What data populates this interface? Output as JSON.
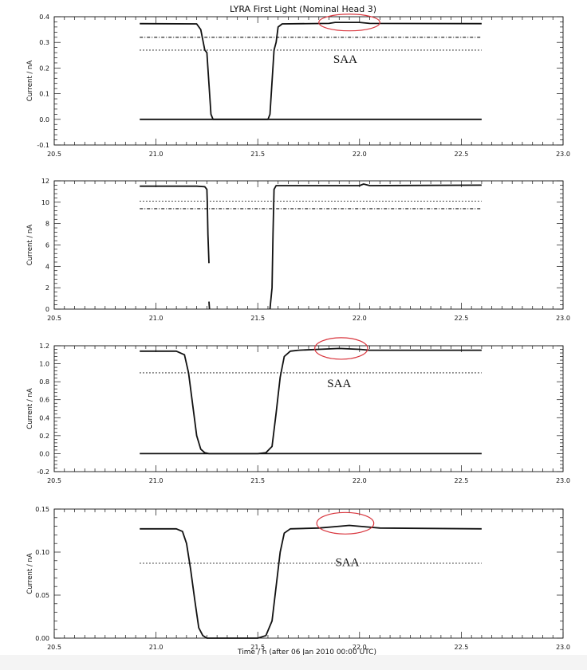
{
  "title": "LYRA First Light (Nominal Head 3)",
  "xlabel": "Time / h (after 06 Jan 2010 00:00 UTC)",
  "chart_data": [
    {
      "type": "line",
      "title": "LYRA First Light (Nominal Head 3)",
      "xlabel": "",
      "ylabel": "Current / nA",
      "xlim": [
        20.5,
        23.0
      ],
      "ylim": [
        -0.1,
        0.4
      ],
      "xticks": [
        20.5,
        21.0,
        21.5,
        22.0,
        22.5,
        23.0
      ],
      "xtick_labels": [
        "20.5",
        "21.0",
        "21.5",
        "22.0",
        "22.5",
        "23.0"
      ],
      "yticks": [
        -0.1,
        0.0,
        0.1,
        0.2,
        0.3,
        0.4
      ],
      "ytick_labels": [
        "-0.1",
        "0.0",
        "0.1",
        "0.2",
        "0.3",
        "0.4"
      ],
      "series": [
        {
          "style": "solid",
          "x": [
            20.92,
            21.2,
            21.22,
            21.24,
            21.25,
            21.27,
            21.28,
            21.55,
            21.56,
            21.58,
            21.59,
            21.6,
            21.62,
            21.85,
            21.88,
            22.0,
            22.05,
            22.6
          ],
          "y": [
            0.373,
            0.372,
            0.35,
            0.27,
            0.26,
            0.02,
            0.0,
            0.0,
            0.02,
            0.27,
            0.3,
            0.36,
            0.372,
            0.374,
            0.378,
            0.378,
            0.374,
            0.373
          ]
        },
        {
          "style": "dash-dot",
          "x": [
            20.92,
            22.6
          ],
          "y": [
            0.32,
            0.32
          ]
        },
        {
          "style": "dotted",
          "x": [
            20.92,
            22.6
          ],
          "y": [
            0.27,
            0.27
          ]
        },
        {
          "style": "solid",
          "x": [
            20.92,
            22.6
          ],
          "y": [
            0.0,
            0.0
          ]
        }
      ],
      "annotations": [
        {
          "text": "SAA",
          "x": 21.93,
          "y": 0.22
        }
      ],
      "highlight": {
        "x": [
          21.8,
          22.1
        ],
        "y": [
          0.345,
          0.41
        ]
      }
    },
    {
      "type": "line",
      "title": "",
      "xlabel": "",
      "ylabel": "Current / nA",
      "xlim": [
        20.5,
        23.0
      ],
      "ylim": [
        0,
        12
      ],
      "xticks": [
        20.5,
        21.0,
        21.5,
        22.0,
        22.5,
        23.0
      ],
      "xtick_labels": [
        "20.5",
        "21.0",
        "21.5",
        "22.0",
        "22.5",
        "23.0"
      ],
      "yticks": [
        0,
        2,
        4,
        6,
        8,
        10,
        12
      ],
      "ytick_labels": [
        "0",
        "2",
        "4",
        "6",
        "8",
        "10",
        "12"
      ],
      "series": [
        {
          "style": "solid",
          "x": [
            20.92,
            21.2,
            21.24,
            21.25,
            21.252,
            21.255,
            21.26,
            21.26
          ],
          "y": [
            11.5,
            11.5,
            11.45,
            11.2,
            10.0,
            7.0,
            4.3,
            4.3
          ]
        },
        {
          "style": "solid",
          "x": [
            21.26,
            21.262,
            21.263
          ],
          "y": [
            0.7,
            0.2,
            0.0
          ]
        },
        {
          "style": "solid",
          "x": [
            21.56,
            21.57,
            21.575,
            21.58,
            21.59,
            22.0,
            22.02,
            22.05,
            22.6
          ],
          "y": [
            0.0,
            2.0,
            7.0,
            11.2,
            11.55,
            11.55,
            11.7,
            11.55,
            11.6
          ]
        },
        {
          "style": "dotted",
          "x": [
            20.92,
            22.6
          ],
          "y": [
            10.1,
            10.1
          ]
        },
        {
          "style": "dash-dot",
          "x": [
            20.92,
            22.6
          ],
          "y": [
            9.4,
            9.4
          ]
        }
      ]
    },
    {
      "type": "line",
      "title": "",
      "xlabel": "",
      "ylabel": "Current / nA",
      "xlim": [
        20.5,
        23.0
      ],
      "ylim": [
        -0.2,
        1.2
      ],
      "xticks": [
        20.5,
        21.0,
        21.5,
        22.0,
        22.5,
        23.0
      ],
      "xtick_labels": [
        "20.5",
        "21.0",
        "21.5",
        "22.0",
        "22.5",
        "23.0"
      ],
      "yticks": [
        -0.2,
        0.0,
        0.2,
        0.4,
        0.6,
        0.8,
        1.0,
        1.2
      ],
      "ytick_labels": [
        "-0.2",
        "0.0",
        "0.2",
        "0.4",
        "0.6",
        "0.8",
        "1.0",
        "1.2"
      ],
      "series": [
        {
          "style": "solid",
          "x": [
            20.92,
            21.1,
            21.14,
            21.16,
            21.18,
            21.2,
            21.22,
            21.24,
            21.26,
            21.3,
            21.5,
            21.54,
            21.57,
            21.59,
            21.61,
            21.63,
            21.66,
            21.7,
            21.8,
            21.9,
            22.0,
            22.05,
            22.6
          ],
          "y": [
            1.14,
            1.14,
            1.1,
            0.9,
            0.55,
            0.2,
            0.05,
            0.01,
            0.0,
            0.0,
            0.0,
            0.01,
            0.08,
            0.45,
            0.85,
            1.08,
            1.14,
            1.15,
            1.16,
            1.17,
            1.16,
            1.15,
            1.15
          ]
        },
        {
          "style": "dotted",
          "x": [
            20.92,
            22.6
          ],
          "y": [
            0.9,
            0.9
          ]
        },
        {
          "style": "solid",
          "x": [
            20.92,
            22.6
          ],
          "y": [
            0.0,
            0.0
          ]
        }
      ],
      "annotations": [
        {
          "text": "SAA",
          "x": 21.9,
          "y": 0.74
        }
      ],
      "highlight": {
        "x": [
          21.78,
          22.04
        ],
        "y": [
          1.05,
          1.29
        ]
      }
    },
    {
      "type": "line",
      "title": "",
      "xlabel": "Time / h (after 06 Jan 2010 00:00 UTC)",
      "ylabel": "Current / nA",
      "xlim": [
        20.5,
        23.0
      ],
      "ylim": [
        0.0,
        0.15
      ],
      "xticks": [
        20.5,
        21.0,
        21.5,
        22.0,
        22.5,
        23.0
      ],
      "xtick_labels": [
        "20.5",
        "21.0",
        "21.5",
        "22.0",
        "22.5",
        "23.0"
      ],
      "yticks": [
        0.0,
        0.05,
        0.1,
        0.15
      ],
      "ytick_labels": [
        "0.00",
        "0.05",
        "0.10",
        "0.15"
      ],
      "series": [
        {
          "style": "solid",
          "x": [
            20.92,
            21.1,
            21.13,
            21.15,
            21.17,
            21.19,
            21.21,
            21.23,
            21.25,
            21.3,
            21.5,
            21.54,
            21.57,
            21.59,
            21.61,
            21.63,
            21.66,
            21.8,
            21.9,
            21.95,
            22.0,
            22.1,
            22.6
          ],
          "y": [
            0.127,
            0.127,
            0.124,
            0.11,
            0.08,
            0.045,
            0.012,
            0.003,
            0.0,
            0.0,
            0.0,
            0.003,
            0.02,
            0.06,
            0.1,
            0.122,
            0.127,
            0.128,
            0.13,
            0.131,
            0.13,
            0.128,
            0.127
          ]
        },
        {
          "style": "dotted",
          "x": [
            20.92,
            22.6
          ],
          "y": [
            0.087,
            0.087
          ]
        }
      ],
      "annotations": [
        {
          "text": "SAA",
          "x": 21.94,
          "y": 0.084
        }
      ],
      "highlight": {
        "x": [
          21.79,
          22.07
        ],
        "y": [
          0.121,
          0.146
        ]
      }
    }
  ]
}
